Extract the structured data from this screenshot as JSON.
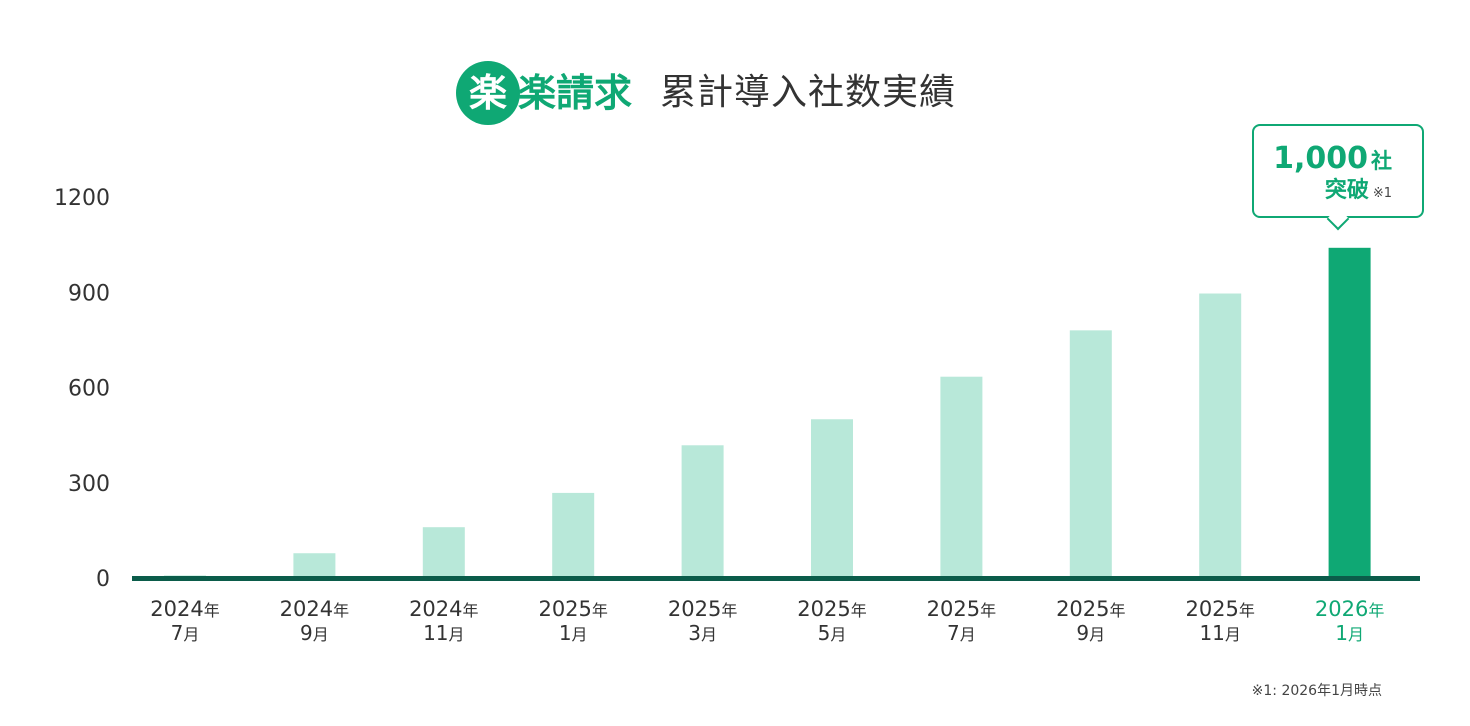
{
  "brand": {
    "logo_circle_char": "楽",
    "logo_rest": "楽請求",
    "title": "累計導入社数実績",
    "accent_color": "#0fa874",
    "bar_color": "#b8e8d9",
    "axis_color": "#0b5c4a"
  },
  "callout": {
    "value": "1,000",
    "unit": "社",
    "word": "突破",
    "note": "※1"
  },
  "footnote": "※1: 2026年1月時点",
  "chart_data": {
    "type": "bar",
    "categories": [
      {
        "year": "2024",
        "year_suffix": "年",
        "month": "7",
        "month_suffix": "月"
      },
      {
        "year": "2024",
        "year_suffix": "年",
        "month": "9",
        "month_suffix": "月"
      },
      {
        "year": "2024",
        "year_suffix": "年",
        "month": "11",
        "month_suffix": "月"
      },
      {
        "year": "2025",
        "year_suffix": "年",
        "month": "1",
        "month_suffix": "月"
      },
      {
        "year": "2025",
        "year_suffix": "年",
        "month": "3",
        "month_suffix": "月"
      },
      {
        "year": "2025",
        "year_suffix": "年",
        "month": "5",
        "month_suffix": "月"
      },
      {
        "year": "2025",
        "year_suffix": "年",
        "month": "7",
        "month_suffix": "月"
      },
      {
        "year": "2025",
        "year_suffix": "年",
        "month": "9",
        "month_suffix": "月"
      },
      {
        "year": "2025",
        "year_suffix": "年",
        "month": "11",
        "month_suffix": "月"
      },
      {
        "year": "2026",
        "year_suffix": "年",
        "month": "1",
        "month_suffix": "月"
      }
    ],
    "values": [
      8,
      78,
      160,
      268,
      418,
      500,
      634,
      780,
      896,
      1040
    ],
    "highlight_index": 9,
    "y_ticks": [
      0,
      300,
      600,
      900,
      1200
    ],
    "ylim": [
      0,
      1200
    ],
    "grid": false,
    "title": "累計導入社数実績",
    "xlabel": "",
    "ylabel": ""
  }
}
